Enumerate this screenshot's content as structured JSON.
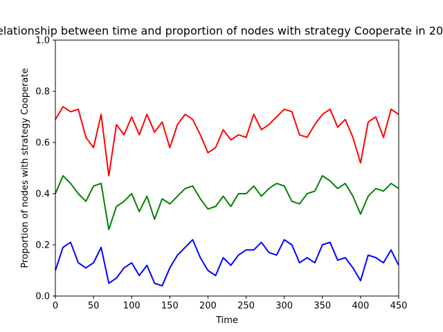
{
  "chart_data": {
    "type": "line",
    "title": "Relationship between time and proportion of nodes with strategy Cooperate in 20...",
    "xlabel": "Time",
    "ylabel": "Proportion of nodes with strategy Cooperate",
    "xlim": [
      0,
      450
    ],
    "ylim": [
      0.0,
      1.0
    ],
    "xticks": [
      "0",
      "50",
      "100",
      "150",
      "200",
      "250",
      "300",
      "350",
      "400",
      "450"
    ],
    "yticks": [
      "0.0",
      "0.2",
      "0.4",
      "0.6",
      "0.8",
      "1.0"
    ],
    "grid": false,
    "x": [
      0,
      10,
      20,
      30,
      40,
      50,
      60,
      70,
      80,
      90,
      100,
      110,
      120,
      130,
      140,
      150,
      160,
      170,
      180,
      190,
      200,
      210,
      220,
      230,
      240,
      250,
      260,
      270,
      280,
      290,
      300,
      310,
      320,
      330,
      340,
      350,
      360,
      370,
      380,
      390,
      400,
      410,
      420,
      430,
      440,
      450
    ],
    "series": [
      {
        "color": "#ff0000",
        "values": [
          0.69,
          0.74,
          0.72,
          0.73,
          0.62,
          0.58,
          0.71,
          0.47,
          0.67,
          0.63,
          0.7,
          0.63,
          0.71,
          0.64,
          0.68,
          0.58,
          0.67,
          0.71,
          0.69,
          0.63,
          0.56,
          0.58,
          0.65,
          0.61,
          0.63,
          0.62,
          0.71,
          0.65,
          0.67,
          0.7,
          0.73,
          0.72,
          0.63,
          0.62,
          0.67,
          0.71,
          0.73,
          0.66,
          0.69,
          0.62,
          0.52,
          0.68,
          0.7,
          0.62,
          0.73,
          0.71
        ]
      },
      {
        "color": "#008000",
        "values": [
          0.4,
          0.47,
          0.44,
          0.4,
          0.37,
          0.43,
          0.44,
          0.26,
          0.35,
          0.37,
          0.4,
          0.33,
          0.39,
          0.3,
          0.38,
          0.36,
          0.39,
          0.42,
          0.43,
          0.38,
          0.34,
          0.35,
          0.39,
          0.35,
          0.4,
          0.4,
          0.43,
          0.39,
          0.42,
          0.44,
          0.43,
          0.37,
          0.36,
          0.4,
          0.41,
          0.47,
          0.45,
          0.42,
          0.44,
          0.39,
          0.32,
          0.39,
          0.42,
          0.41,
          0.44,
          0.42
        ]
      },
      {
        "color": "#0000ff",
        "values": [
          0.1,
          0.19,
          0.21,
          0.13,
          0.11,
          0.13,
          0.19,
          0.05,
          0.07,
          0.11,
          0.13,
          0.08,
          0.12,
          0.05,
          0.04,
          0.11,
          0.16,
          0.19,
          0.22,
          0.15,
          0.1,
          0.08,
          0.15,
          0.12,
          0.16,
          0.18,
          0.18,
          0.21,
          0.17,
          0.16,
          0.22,
          0.2,
          0.13,
          0.15,
          0.13,
          0.2,
          0.21,
          0.14,
          0.15,
          0.11,
          0.06,
          0.16,
          0.15,
          0.13,
          0.18,
          0.12
        ]
      }
    ]
  }
}
